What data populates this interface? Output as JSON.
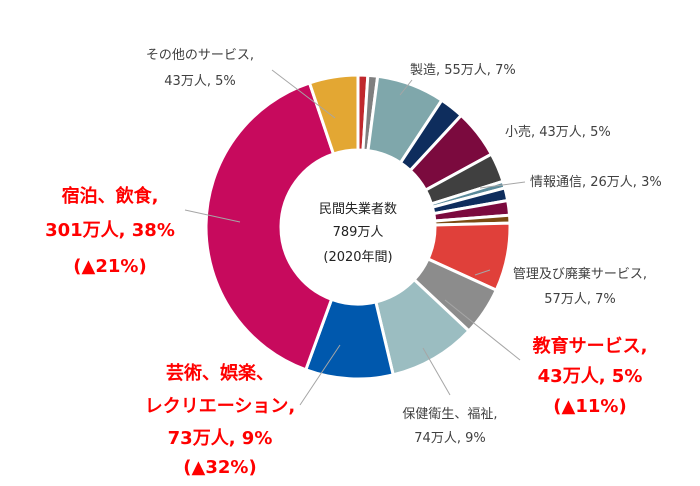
{
  "chart_data": {
    "type": "pie",
    "variant": "donut",
    "center_text": {
      "line1": "民間失業者数",
      "line2": "789万人",
      "line3": "(2020年間)"
    },
    "slices": [
      {
        "name": "s01",
        "value": 1.0,
        "color": "#c0282d"
      },
      {
        "name": "s02",
        "value": 1.0,
        "color": "#7f7f7f"
      },
      {
        "name": "製造",
        "value": 7.0,
        "color": "#7fa7ab"
      },
      {
        "name": "s04",
        "value": 2.5,
        "color": "#0e2d5d"
      },
      {
        "name": "小売",
        "value": 5.0,
        "color": "#7b0a3e"
      },
      {
        "name": "情報通信",
        "value": 3.0,
        "color": "#404040"
      },
      {
        "name": "s07",
        "value": 0.7,
        "color": "#5a8a9a"
      },
      {
        "name": "s08",
        "value": 1.3,
        "color": "#0e2d5d"
      },
      {
        "name": "s09",
        "value": 1.5,
        "color": "#7b0a3e"
      },
      {
        "name": "s10",
        "value": 0.8,
        "color": "#7a4a12"
      },
      {
        "name": "管理及び廃棄サービス",
        "value": 7.0,
        "color": "#e0403a"
      },
      {
        "name": "教育サービス",
        "value": 5.0,
        "color": "#8c8c8c"
      },
      {
        "name": "保健衛生、福祉",
        "value": 9.0,
        "color": "#9bbdc1"
      },
      {
        "name": "芸術、娯楽、レクリエーション",
        "value": 9.0,
        "color": "#0058ad"
      },
      {
        "name": "宿泊、飲食",
        "value": 38.0,
        "color": "#c70a5d"
      },
      {
        "name": "その他のサービス",
        "value": 5.0,
        "color": "#e3a733"
      }
    ],
    "labels": {
      "other_services": {
        "line1": "その他のサービス,",
        "line2": "43万人, 5%"
      },
      "manufacturing": "製造, 55万人, 7%",
      "retail": "小売, 43万人, 5%",
      "info_comm": "情報通信, 26万人, 3%",
      "waste_mgmt": {
        "line1": "管理及び廃棄サービス,",
        "line2": "57万人, 7%"
      },
      "education": {
        "line1": "教育サービス,",
        "line2": "43万人, 5%",
        "line3": "(▲11%)"
      },
      "health": {
        "line1": "保健衛生、福祉,",
        "line2": "74万人, 9%"
      },
      "arts": {
        "line1": "芸術、娯楽、",
        "line2": "レクリエーション,",
        "line3": "73万人, 9%",
        "line4": "(▲32%)"
      },
      "accommodation": {
        "line1": "宿泊、飲食,",
        "line2": "301万人, 38%",
        "line3": "(▲21%)"
      }
    },
    "highlight_color": "#ff0000",
    "leader_color": "#a6a6a6"
  }
}
